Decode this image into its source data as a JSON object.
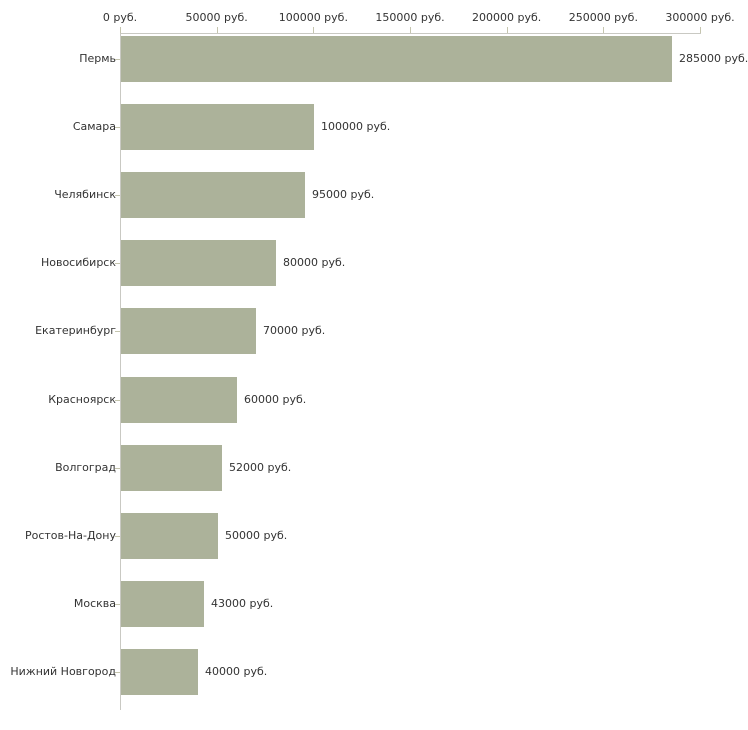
{
  "chart_data": {
    "type": "bar",
    "orientation": "horizontal",
    "title": "",
    "unit": "руб.",
    "categories": [
      "Пермь",
      "Самара",
      "Челябинск",
      "Новосибирск",
      "Екатеринбург",
      "Красноярск",
      "Волгоград",
      "Ростов-На-Дону",
      "Москва",
      "Нижний Новгород"
    ],
    "values": [
      285000,
      100000,
      95000,
      80000,
      70000,
      60000,
      52000,
      50000,
      43000,
      40000
    ],
    "value_labels": [
      "285000 руб.",
      "100000 руб.",
      "95000 руб.",
      "80000 руб.",
      "70000 руб.",
      "60000 руб.",
      "52000 руб.",
      "50000 руб.",
      "43000 руб.",
      "40000 руб."
    ],
    "x_axis": {
      "position": "top",
      "min": 0,
      "max": 300000,
      "tick_values": [
        0,
        50000,
        100000,
        150000,
        200000,
        250000,
        300000
      ],
      "tick_labels": [
        "0 руб.",
        "50000 руб.",
        "100000 руб.",
        "150000 руб.",
        "200000 руб.",
        "250000 руб.",
        "300000 руб."
      ]
    },
    "grid": false,
    "legend": false,
    "colors": {
      "bar": "#acb29a",
      "axis_line": "#c9c9c3",
      "tick": "#c5c5ae",
      "text": "#333333",
      "background": "#ffffff"
    }
  }
}
